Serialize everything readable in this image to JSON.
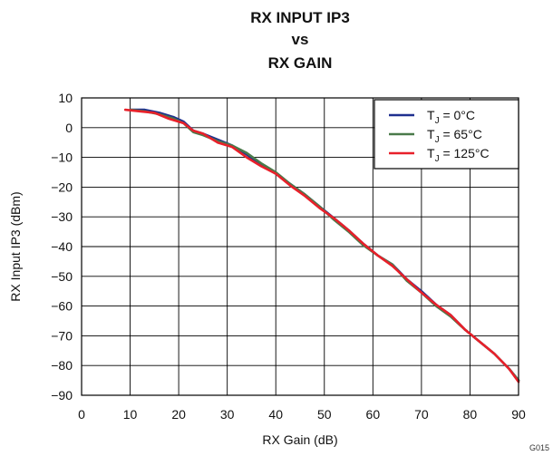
{
  "chart_data": {
    "type": "line",
    "title_lines": [
      "RX INPUT IP3",
      "vs",
      "RX GAIN"
    ],
    "xlabel": "RX Gain (dB)",
    "ylabel": "RX Input IP3 (dBm)",
    "xlim": [
      0,
      90
    ],
    "ylim": [
      -90,
      10
    ],
    "xticks": [
      0,
      10,
      20,
      30,
      40,
      50,
      60,
      70,
      80,
      90
    ],
    "yticks": [
      10,
      0,
      -10,
      -20,
      -30,
      -40,
      -50,
      -60,
      -70,
      -80,
      -90
    ],
    "ytick_labels": [
      "10",
      "0",
      "−10",
      "−20",
      "−30",
      "−40",
      "−50",
      "−60",
      "−70",
      "−80",
      "−90"
    ],
    "grid": true,
    "legend_position": "top-right",
    "series": [
      {
        "name": "TJ = 0°C",
        "name_parts": {
          "base": "T",
          "sub": "J",
          "rest": " = 0°C"
        },
        "color": "#1f2f8f",
        "x": [
          10,
          13,
          16,
          19,
          21,
          23,
          25,
          28,
          31,
          34,
          37,
          40,
          43,
          46,
          49,
          52,
          55,
          58,
          61,
          64,
          67,
          70,
          73,
          76,
          79,
          82,
          85,
          88,
          90
        ],
        "y": [
          6,
          6,
          5,
          3.5,
          2,
          -1,
          -2,
          -4,
          -6,
          -9,
          -12.5,
          -15.5,
          -19,
          -22.5,
          -26.5,
          -30.5,
          -34.5,
          -39,
          -43,
          -46,
          -51,
          -55,
          -59.5,
          -63,
          -68,
          -72,
          -76,
          -81,
          -85
        ]
      },
      {
        "name": "TJ = 65°C",
        "name_parts": {
          "base": "T",
          "sub": "J",
          "rest": " = 65°C"
        },
        "color": "#4a7a4a",
        "x": [
          10,
          13,
          16,
          19,
          21,
          23,
          25,
          28,
          31,
          34,
          37,
          40,
          43,
          46,
          49,
          52,
          55,
          58,
          61,
          64,
          67,
          70,
          73,
          76,
          79,
          82,
          85,
          88,
          90
        ],
        "y": [
          6,
          5.5,
          4.5,
          3,
          1.5,
          -1.5,
          -2.5,
          -4.5,
          -6,
          -8.5,
          -12,
          -15,
          -19,
          -22.5,
          -26.5,
          -31,
          -35,
          -39.5,
          -43,
          -46,
          -51.5,
          -55.5,
          -60,
          -63.5,
          -68,
          -72,
          -76,
          -81,
          -85
        ]
      },
      {
        "name": "TJ = 125°C",
        "name_parts": {
          "base": "T",
          "sub": "J",
          "rest": " = 125°C"
        },
        "color": "#e8202a",
        "x": [
          9,
          12,
          15,
          18,
          21,
          23,
          25,
          28,
          31,
          34,
          37,
          40,
          43,
          46,
          49,
          52,
          55,
          58,
          61,
          64,
          67,
          70,
          73,
          76,
          79,
          82,
          85,
          88,
          90
        ],
        "y": [
          6,
          5.5,
          5,
          3,
          1.5,
          -1,
          -2,
          -5,
          -6.5,
          -10,
          -13,
          -15.5,
          -19.5,
          -23,
          -27,
          -30.5,
          -34.5,
          -39,
          -43,
          -46.5,
          -51,
          -55.5,
          -59.5,
          -63,
          -68,
          -72,
          -76,
          -81,
          -85.5
        ]
      }
    ]
  },
  "figure_code": "G015"
}
